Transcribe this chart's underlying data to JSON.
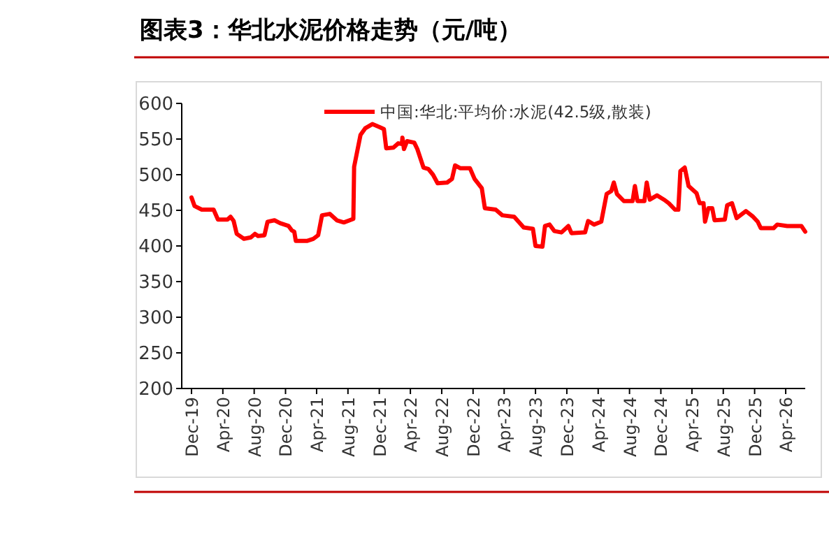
{
  "chart_data": {
    "type": "line",
    "title": "图表3：华北水泥价格走势（元/吨）",
    "x": [
      "2019-12-01",
      "2019-12-13",
      "2020-01-10",
      "2020-02-25",
      "2020-03-13",
      "2020-04-19",
      "2020-05-01",
      "2020-05-13",
      "2020-05-25",
      "2020-06-22",
      "2020-07-19",
      "2020-08-04",
      "2020-08-16",
      "2020-09-10",
      "2020-09-22",
      "2020-10-19",
      "2020-11-10",
      "2020-12-13",
      "2020-12-25",
      "2021-01-04",
      "2021-01-10",
      "2021-02-22",
      "2021-03-19",
      "2021-04-07",
      "2021-04-22",
      "2021-05-22",
      "2021-06-19",
      "2021-07-16",
      "2021-08-22",
      "2021-08-25",
      "2021-09-19",
      "2021-10-07",
      "2021-11-04",
      "2021-12-01",
      "2021-12-19",
      "2021-12-28",
      "2022-01-25",
      "2022-02-13",
      "2022-02-27",
      "2022-03-01",
      "2022-03-07",
      "2022-03-19",
      "2022-04-16",
      "2022-04-28",
      "2022-05-22",
      "2022-06-10",
      "2022-06-28",
      "2022-07-16",
      "2022-08-22",
      "2022-09-10",
      "2022-09-22",
      "2022-10-13",
      "2022-11-19",
      "2022-12-07",
      "2023-01-04",
      "2023-01-16",
      "2023-02-27",
      "2023-03-25",
      "2023-05-10",
      "2023-06-16",
      "2023-07-22",
      "2023-08-01",
      "2023-08-28",
      "2023-09-07",
      "2023-09-25",
      "2023-10-13",
      "2023-11-10",
      "2023-12-07",
      "2023-12-19",
      "2024-02-10",
      "2024-02-22",
      "2024-03-16",
      "2024-04-13",
      "2024-05-04",
      "2024-05-22",
      "2024-06-01",
      "2024-06-13",
      "2024-07-10",
      "2024-08-13",
      "2024-08-22",
      "2024-09-01",
      "2024-09-28",
      "2024-10-07",
      "2024-10-19",
      "2024-11-16",
      "2024-12-13",
      "2025-01-01",
      "2025-01-25",
      "2025-02-07",
      "2025-02-15",
      "2025-03-04",
      "2025-03-19",
      "2025-04-19",
      "2025-05-01",
      "2025-05-16",
      "2025-05-22",
      "2025-06-04",
      "2025-06-19",
      "2025-06-28",
      "2025-08-07",
      "2025-08-16",
      "2025-09-04",
      "2025-09-22",
      "2025-10-28",
      "2025-11-25",
      "2025-12-13",
      "2025-12-25",
      "2026-02-13",
      "2026-02-27",
      "2026-04-07",
      "2026-06-01",
      "2026-06-16"
    ],
    "series": [
      {
        "name": "中国:华北:平均价:水泥(42.5级,散装)",
        "color": "#ff0000",
        "values": [
          468,
          456,
          451,
          451,
          437,
          437,
          441,
          435,
          417,
          410,
          412,
          417,
          414,
          415,
          434,
          436,
          432,
          428,
          422,
          420,
          407,
          407,
          410,
          415,
          443,
          445,
          436,
          433,
          438,
          511,
          556,
          565,
          571,
          567,
          564,
          537,
          538,
          544,
          543,
          552,
          536,
          547,
          545,
          536,
          510,
          508,
          500,
          488,
          489,
          494,
          513,
          509,
          509,
          494,
          481,
          453,
          451,
          443,
          441,
          426,
          424,
          400,
          399,
          428,
          430,
          421,
          419,
          428,
          418,
          419,
          435,
          430,
          434,
          473,
          477,
          489,
          473,
          463,
          463,
          484,
          463,
          463,
          489,
          465,
          471,
          465,
          460,
          451,
          451,
          505,
          510,
          484,
          474,
          460,
          460,
          434,
          453,
          453,
          436,
          437,
          457,
          460,
          439,
          449,
          441,
          434,
          425,
          425,
          430,
          428,
          428,
          420
        ]
      }
    ],
    "xlim": [
      "2019-10-24",
      "2026-06-16"
    ],
    "xticks": [
      {
        "value": "2019-12-01",
        "label": "Dec-19"
      },
      {
        "value": "2020-04-01",
        "label": "Apr-20"
      },
      {
        "value": "2020-08-01",
        "label": "Aug-20"
      },
      {
        "value": "2020-12-01",
        "label": "Dec-20"
      },
      {
        "value": "2021-04-01",
        "label": "Apr-21"
      },
      {
        "value": "2021-08-01",
        "label": "Aug-21"
      },
      {
        "value": "2021-12-01",
        "label": "Dec-21"
      },
      {
        "value": "2022-04-01",
        "label": "Apr-22"
      },
      {
        "value": "2022-08-01",
        "label": "Aug-22"
      },
      {
        "value": "2022-12-01",
        "label": "Dec-22"
      },
      {
        "value": "2023-04-01",
        "label": "Apr-23"
      },
      {
        "value": "2023-08-01",
        "label": "Aug-23"
      },
      {
        "value": "2023-12-01",
        "label": "Dec-23"
      },
      {
        "value": "2024-04-01",
        "label": "Apr-24"
      },
      {
        "value": "2024-08-01",
        "label": "Aug-24"
      },
      {
        "value": "2024-12-01",
        "label": "Dec-24"
      },
      {
        "value": "2025-04-01",
        "label": "Apr-25"
      },
      {
        "value": "2025-08-01",
        "label": "Aug-25"
      },
      {
        "value": "2025-12-01",
        "label": "Dec-25"
      },
      {
        "value": "2026-04-01",
        "label": "Apr-26"
      }
    ],
    "ylim": [
      200,
      600
    ],
    "yticks": [
      200,
      250,
      300,
      350,
      400,
      450,
      500,
      550,
      600
    ],
    "legend": "top right",
    "line_style": "solid",
    "marker": "none",
    "grid": false
  }
}
